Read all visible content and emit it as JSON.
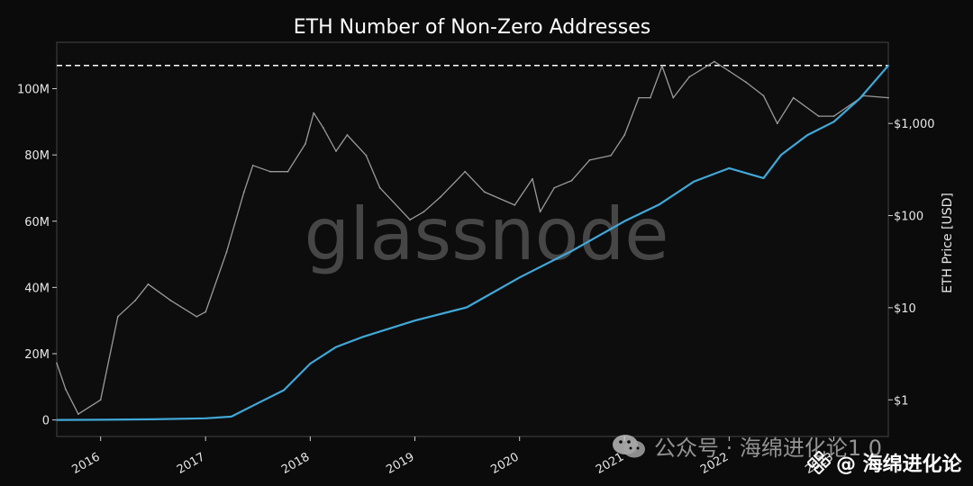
{
  "chart_data": {
    "type": "line",
    "title": "ETH Number of Non-Zero Addresses",
    "xlabel": "",
    "ylabel": "",
    "y2label": "ETH Price [USD]",
    "watermark": "glassnode",
    "x_ticks": [
      "2016",
      "2017",
      "2018",
      "2019",
      "2020",
      "2021",
      "2022",
      "2023"
    ],
    "y_ticks": [
      "0",
      "20M",
      "40M",
      "60M",
      "80M",
      "100M"
    ],
    "y_tick_values": [
      0,
      20000000,
      40000000,
      60000000,
      80000000,
      100000000
    ],
    "y2_ticks": [
      "$1",
      "$10",
      "$100",
      "$1,000"
    ],
    "y2_tick_values": [
      1,
      10,
      100,
      1000
    ],
    "ylim": [
      -5000000,
      114000000
    ],
    "y2lim": [
      0.4,
      7600
    ],
    "y2_scale": "log",
    "xlim": [
      "2015-08-01",
      "2023-07-10"
    ],
    "ath_reference": "dashed",
    "series": [
      {
        "name": "",
        "color": "#41a8d8",
        "axis": "left",
        "x": [
          "2015-08-01",
          "2016-01-01",
          "2016-07-01",
          "2017-01-01",
          "2017-04-01",
          "2017-07-01",
          "2017-10-01",
          "2018-01-01",
          "2018-04-01",
          "2018-07-01",
          "2019-01-01",
          "2019-07-01",
          "2020-01-01",
          "2020-07-01",
          "2021-01-01",
          "2021-05-01",
          "2021-09-01",
          "2022-01-01",
          "2022-05-01",
          "2022-07-01",
          "2022-10-01",
          "2023-01-01",
          "2023-04-01",
          "2023-07-10"
        ],
        "values": [
          0,
          40000,
          200000,
          500000,
          1000000,
          5000000,
          9000000,
          17000000,
          22000000,
          25000000,
          30000000,
          34000000,
          43000000,
          51000000,
          60000000,
          65000000,
          72000000,
          76000000,
          73000000,
          80000000,
          86000000,
          90000000,
          97000000,
          107000000
        ]
      },
      {
        "name": "",
        "color": "#9a9a9a",
        "axis": "right",
        "x": [
          "2015-08-01",
          "2015-09-01",
          "2015-10-15",
          "2016-01-01",
          "2016-03-01",
          "2016-05-01",
          "2016-06-15",
          "2016-09-01",
          "2016-12-01",
          "2017-01-01",
          "2017-03-15",
          "2017-05-15",
          "2017-06-15",
          "2017-08-15",
          "2017-10-15",
          "2017-12-15",
          "2018-01-13",
          "2018-02-15",
          "2018-04-01",
          "2018-05-10",
          "2018-07-15",
          "2018-09-01",
          "2018-12-15",
          "2019-02-01",
          "2019-04-01",
          "2019-06-25",
          "2019-09-01",
          "2019-12-15",
          "2020-02-15",
          "2020-03-13",
          "2020-05-01",
          "2020-07-01",
          "2020-09-01",
          "2020-11-15",
          "2021-01-01",
          "2021-02-20",
          "2021-04-01",
          "2021-05-12",
          "2021-06-20",
          "2021-08-15",
          "2021-11-10",
          "2022-01-01",
          "2022-03-01",
          "2022-05-01",
          "2022-06-18",
          "2022-08-13",
          "2022-11-09",
          "2023-01-01",
          "2023-04-15",
          "2023-07-10"
        ],
        "values": [
          2.5,
          1.3,
          0.7,
          1.0,
          8.0,
          12.0,
          18.0,
          12.0,
          8.0,
          9.0,
          40.0,
          180.0,
          350.0,
          300.0,
          300.0,
          600.0,
          1300.0,
          900.0,
          500.0,
          750.0,
          450.0,
          200.0,
          90.0,
          110.0,
          160.0,
          300.0,
          180.0,
          130.0,
          250.0,
          110.0,
          200.0,
          240.0,
          400.0,
          450.0,
          750.0,
          1900.0,
          1900.0,
          4200.0,
          1900.0,
          3200.0,
          4700.0,
          3700.0,
          2800.0,
          2000.0,
          1000.0,
          1900.0,
          1200.0,
          1200.0,
          2000.0,
          1900.0
        ]
      }
    ]
  },
  "overlay": {
    "wechat_text": "公众号 · 海绵进化论1.0",
    "binance_text": "@ 海绵进化论"
  }
}
